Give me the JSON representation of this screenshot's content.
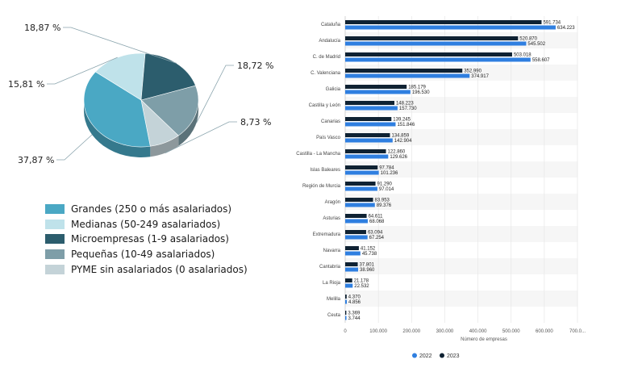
{
  "chart_data": [
    {
      "type": "pie",
      "slices": [
        {
          "name": "Grandes (250 o más asalariados)",
          "value": 37.87,
          "label": "37,87 %",
          "color": "#4aa8c4"
        },
        {
          "name": "Medianas (50-249 asalariados)",
          "value": 15.81,
          "label": "15,81 %",
          "color": "#bfe2ea"
        },
        {
          "name": "Microempresas (1-9 asalariados)",
          "value": 18.87,
          "label": "18,87 %",
          "color": "#2c5d6d"
        },
        {
          "name": "Pequeñas (10-49 asalariados)",
          "value": 18.72,
          "label": "18,72 %",
          "color": "#7e9ea8"
        },
        {
          "name": "PYME sin asalariados (0 asalariados)",
          "value": 8.73,
          "label": "8,73 %",
          "color": "#c4d3d8"
        }
      ]
    },
    {
      "type": "bar",
      "orientation": "horizontal",
      "categories": [
        "Cataluña",
        "Andalucía",
        "C. de Madrid",
        "C. Valenciana",
        "Galicia",
        "Castilla y León",
        "Canarias",
        "País Vasco",
        "Castilla - La Mancha",
        "Islas Baleares",
        "Región de Murcia",
        "Aragón",
        "Asturias",
        "Extremadura",
        "Navarra",
        "Cantabria",
        "La Rioja",
        "Melilla",
        "Ceuta"
      ],
      "series": [
        {
          "name": "2023",
          "color": "#0f2233",
          "values": [
            591734,
            520870,
            503018,
            352990,
            185179,
            148223,
            139245,
            134859,
            122860,
            97784,
            91290,
            83953,
            64611,
            63094,
            41152,
            37801,
            21178,
            4370,
            3369
          ],
          "labels": [
            "591.734",
            "520.870",
            "503.018",
            "352.990",
            "185.179",
            "148.223",
            "139.245",
            "134.859",
            "122.860",
            "97.784",
            "91.290",
            "83.953",
            "64.611",
            "63.094",
            "41.152",
            "37.801",
            "21.178",
            "4.370",
            "3.369"
          ]
        },
        {
          "name": "2022",
          "color": "#2f7fe0",
          "values": [
            634223,
            545502,
            558607,
            374917,
            196530,
            157730,
            151846,
            142904,
            129626,
            101236,
            97014,
            89376,
            68068,
            67254,
            45738,
            38960,
            22532,
            4856,
            3744
          ],
          "labels": [
            "634.223",
            "545.502",
            "558.607",
            "374.917",
            "196.530",
            "157.730",
            "151.846",
            "142.904",
            "129.626",
            "101.236",
            "97.014",
            "89.376",
            "68.068",
            "67.254",
            "45.738",
            "38.960",
            "22.532",
            "4.856",
            "3.744"
          ]
        }
      ],
      "xlim": [
        0,
        700000
      ],
      "xticks": [
        "0",
        "100.000",
        "200.000",
        "300.000",
        "400.000",
        "500.000",
        "600.000",
        "700.0..."
      ],
      "xlabel": "Número de empresas",
      "legend": [
        {
          "name": "2022",
          "color": "#2f7fe0"
        },
        {
          "name": "2023",
          "color": "#0f2233"
        }
      ],
      "legend_position": "bottom",
      "grid": true
    }
  ]
}
